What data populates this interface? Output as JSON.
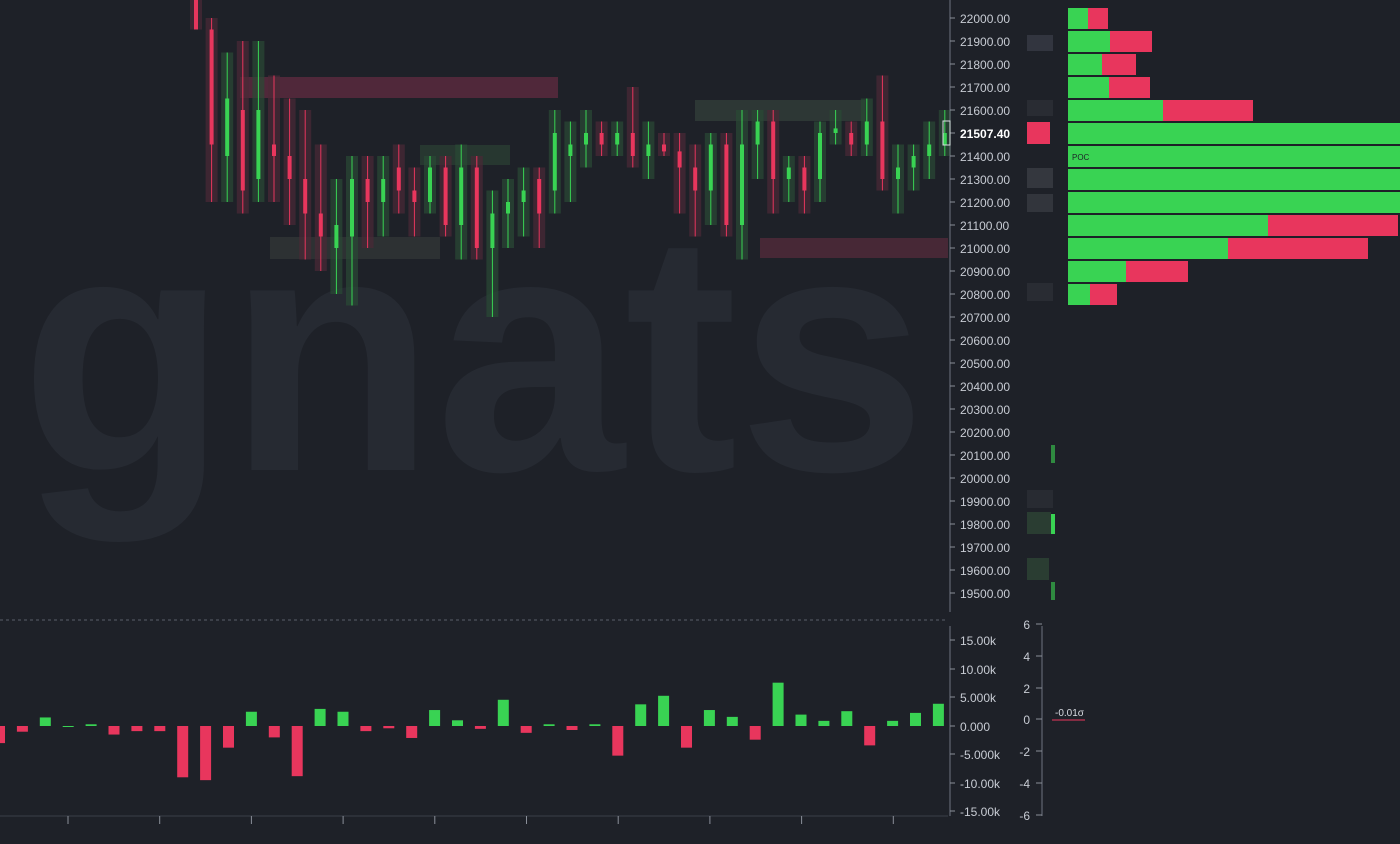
{
  "watermark": "gnats",
  "price_axis": {
    "ticks": [
      "22000.00",
      "21900.00",
      "21800.00",
      "21700.00",
      "21600.00",
      "21507.40",
      "21400.00",
      "21300.00",
      "21200.00",
      "21100.00",
      "21000.00",
      "20900.00",
      "20800.00",
      "20700.00",
      "20600.00",
      "20500.00",
      "20400.00",
      "20300.00",
      "20200.00",
      "20100.00",
      "20000.00",
      "19900.00",
      "19800.00",
      "19700.00",
      "19600.00",
      "19500.00"
    ],
    "current_price": "21507.40"
  },
  "volume_profile_label": "POC",
  "delta_axis": {
    "ticks": [
      "15.00k",
      "10.00k",
      "5.000k",
      "0.000",
      "-5.000k",
      "-10.00k",
      "-15.00k"
    ]
  },
  "sigma_axis": {
    "ticks": [
      "6",
      "4",
      "2",
      "0",
      "-2",
      "-4",
      "-6"
    ],
    "readout": "-0.01σ"
  },
  "colors": {
    "up": "#39d353",
    "down": "#e8365d",
    "background": "#1e2128",
    "axis_text": "#c8ccd4"
  },
  "chart_data": [
    {
      "type": "candlestick",
      "chart": "footprint-price",
      "ylim": [
        19400,
        22100
      ],
      "current_price": 21507.4,
      "candles": [
        {
          "o": 22100,
          "h": 22120,
          "l": 21950,
          "c": 21950
        },
        {
          "o": 21950,
          "h": 22000,
          "l": 21200,
          "c": 21450
        },
        {
          "o": 21400,
          "h": 21850,
          "l": 21200,
          "c": 21650
        },
        {
          "o": 21600,
          "h": 21900,
          "l": 21150,
          "c": 21250
        },
        {
          "o": 21300,
          "h": 21900,
          "l": 21200,
          "c": 21600
        },
        {
          "o": 21450,
          "h": 21750,
          "l": 21200,
          "c": 21400
        },
        {
          "o": 21400,
          "h": 21650,
          "l": 21100,
          "c": 21300
        },
        {
          "o": 21300,
          "h": 21600,
          "l": 20950,
          "c": 21150
        },
        {
          "o": 21150,
          "h": 21450,
          "l": 20900,
          "c": 21050
        },
        {
          "o": 21000,
          "h": 21300,
          "l": 20800,
          "c": 21100
        },
        {
          "o": 21050,
          "h": 21400,
          "l": 20750,
          "c": 21300
        },
        {
          "o": 21300,
          "h": 21400,
          "l": 21000,
          "c": 21200
        },
        {
          "o": 21200,
          "h": 21400,
          "l": 21050,
          "c": 21300
        },
        {
          "o": 21350,
          "h": 21450,
          "l": 21150,
          "c": 21250
        },
        {
          "o": 21250,
          "h": 21350,
          "l": 21050,
          "c": 21200
        },
        {
          "o": 21200,
          "h": 21400,
          "l": 21150,
          "c": 21350
        },
        {
          "o": 21350,
          "h": 21400,
          "l": 21050,
          "c": 21100
        },
        {
          "o": 21100,
          "h": 21450,
          "l": 20950,
          "c": 21350
        },
        {
          "o": 21350,
          "h": 21400,
          "l": 20950,
          "c": 21000
        },
        {
          "o": 21000,
          "h": 21250,
          "l": 20700,
          "c": 21150
        },
        {
          "o": 21150,
          "h": 21300,
          "l": 21000,
          "c": 21200
        },
        {
          "o": 21200,
          "h": 21350,
          "l": 21050,
          "c": 21250
        },
        {
          "o": 21300,
          "h": 21350,
          "l": 21000,
          "c": 21150
        },
        {
          "o": 21250,
          "h": 21600,
          "l": 21150,
          "c": 21500
        },
        {
          "o": 21400,
          "h": 21550,
          "l": 21200,
          "c": 21450
        },
        {
          "o": 21450,
          "h": 21600,
          "l": 21350,
          "c": 21500
        },
        {
          "o": 21500,
          "h": 21550,
          "l": 21400,
          "c": 21450
        },
        {
          "o": 21450,
          "h": 21550,
          "l": 21400,
          "c": 21500
        },
        {
          "o": 21500,
          "h": 21700,
          "l": 21350,
          "c": 21400
        },
        {
          "o": 21400,
          "h": 21550,
          "l": 21300,
          "c": 21450
        },
        {
          "o": 21450,
          "h": 21500,
          "l": 21400,
          "c": 21420
        },
        {
          "o": 21420,
          "h": 21500,
          "l": 21150,
          "c": 21350
        },
        {
          "o": 21350,
          "h": 21450,
          "l": 21050,
          "c": 21250
        },
        {
          "o": 21250,
          "h": 21500,
          "l": 21100,
          "c": 21450
        },
        {
          "o": 21450,
          "h": 21500,
          "l": 21050,
          "c": 21100
        },
        {
          "o": 21100,
          "h": 21600,
          "l": 20950,
          "c": 21450
        },
        {
          "o": 21450,
          "h": 21600,
          "l": 21300,
          "c": 21550
        },
        {
          "o": 21550,
          "h": 21600,
          "l": 21150,
          "c": 21300
        },
        {
          "o": 21300,
          "h": 21400,
          "l": 21200,
          "c": 21350
        },
        {
          "o": 21350,
          "h": 21400,
          "l": 21150,
          "c": 21250
        },
        {
          "o": 21300,
          "h": 21550,
          "l": 21200,
          "c": 21500
        },
        {
          "o": 21500,
          "h": 21600,
          "l": 21450,
          "c": 21520
        },
        {
          "o": 21500,
          "h": 21550,
          "l": 21400,
          "c": 21450
        },
        {
          "o": 21450,
          "h": 21650,
          "l": 21400,
          "c": 21550
        },
        {
          "o": 21550,
          "h": 21750,
          "l": 21250,
          "c": 21300
        },
        {
          "o": 21300,
          "h": 21450,
          "l": 21150,
          "c": 21350
        },
        {
          "o": 21350,
          "h": 21450,
          "l": 21250,
          "c": 21400
        },
        {
          "o": 21400,
          "h": 21550,
          "l": 21300,
          "c": 21450
        },
        {
          "o": 21450,
          "h": 21600,
          "l": 21400,
          "c": 21500
        }
      ]
    },
    {
      "type": "bar",
      "chart": "volume-profile",
      "categories": [
        "22000",
        "21900",
        "21800",
        "21700",
        "21600",
        "21507.4",
        "21400",
        "21300",
        "21200",
        "21100",
        "21000",
        "20900",
        "20800"
      ],
      "series": [
        {
          "values": [
            20,
            42,
            34,
            41,
            95,
            340,
            340,
            340,
            340,
            200,
            160,
            58,
            22
          ]
        },
        {
          "values": [
            20,
            42,
            34,
            41,
            90,
            0,
            0,
            0,
            0,
            130,
            140,
            62,
            27
          ]
        }
      ],
      "poc": "21400"
    },
    {
      "type": "bar",
      "chart": "delta",
      "ylim": [
        -15000,
        15000
      ],
      "values": [
        -3000,
        -1000,
        1500,
        0,
        300,
        -1500,
        -900,
        -900,
        -9000,
        -9500,
        -3800,
        2500,
        -2000,
        -8800,
        3000,
        2500,
        -900,
        -400,
        -2100,
        2800,
        1000,
        -500,
        4600,
        -1200,
        300,
        -700,
        300,
        -5200,
        3800,
        5300,
        -3800,
        2800,
        1600,
        -2400,
        7600,
        2000,
        900,
        2600,
        -3400,
        900,
        2300,
        3900
      ],
      "ylabel_right_ticks": [
        6,
        4,
        2,
        0,
        -2,
        -4,
        -6
      ],
      "sigma": -0.01
    }
  ]
}
